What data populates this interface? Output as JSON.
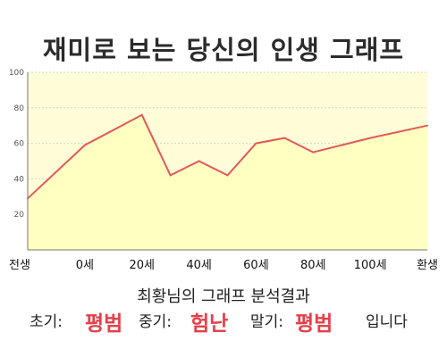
{
  "header": {
    "title": "재미로 보는 당신의 인생 그래프"
  },
  "chart_data": {
    "type": "area",
    "categories": [
      "전생",
      "0세",
      "20세",
      "40세",
      "60세",
      "80세",
      "100세",
      "환생"
    ],
    "x": [
      -20,
      0,
      20,
      30,
      40,
      50,
      60,
      70,
      80,
      90,
      100,
      120
    ],
    "values": [
      29,
      59,
      76,
      42,
      50,
      42,
      60,
      63,
      55,
      59,
      63,
      70
    ],
    "x_tick_values": [
      -20,
      0,
      20,
      40,
      60,
      80,
      100,
      120
    ],
    "y_ticks": [
      "100",
      "80",
      "60",
      "40",
      "20"
    ],
    "y_tick_values": [
      100,
      80,
      60,
      40,
      20
    ],
    "xlim": [
      -20,
      120
    ],
    "ylim": [
      0,
      100
    ],
    "grid": true,
    "line_color": "#e05a5a",
    "fill_color": "#ffffc2"
  },
  "summary": {
    "heading": "최황님의 그래프 분석결과",
    "early_label": "초기:",
    "early_value": "평범",
    "mid_label": "중기:",
    "mid_value": "험난",
    "late_label": "말기:",
    "late_value": "평범",
    "ending": "입니다"
  },
  "colors": {
    "accent": "#e5404a",
    "plot_background": "#fffdd8"
  }
}
